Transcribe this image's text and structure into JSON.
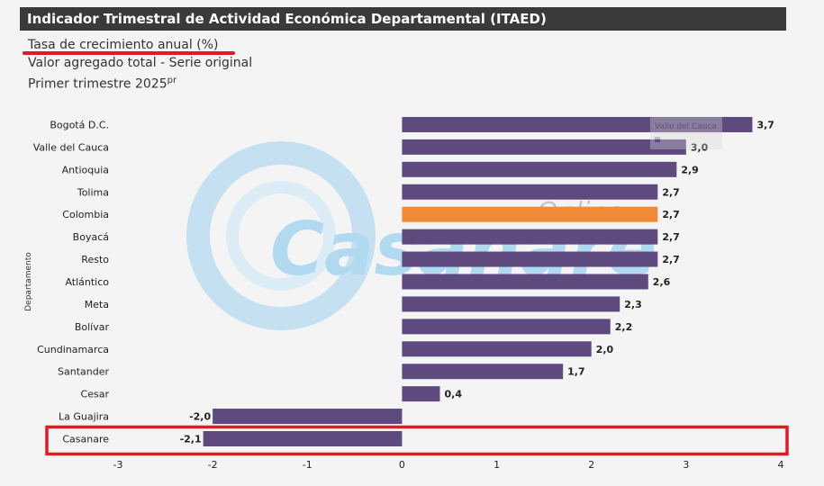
{
  "title": "Indicador Trimestral de Actividad Económica Departamental (ITAED)",
  "subtitle1": "Tasa de crecimiento anual (%)",
  "subtitle2": "Valor agregado total - Serie original",
  "subtitle3": "Primer trimestre 2025",
  "subtitle3_sup": "pr",
  "watermark": {
    "brand": "Casanare",
    "tag": "Online"
  },
  "tooltip": {
    "label": "Valle del Cauca"
  },
  "chart_data": {
    "type": "bar",
    "orientation": "horizontal",
    "ylabel": "Departamento",
    "xlim": [
      -3,
      4
    ],
    "x_ticks": [
      "-3",
      "-2",
      "-1",
      "0",
      "1",
      "2",
      "3",
      "4"
    ],
    "categories": [
      "Bogotá D.C.",
      "Valle del Cauca",
      "Antioquia",
      "Tolima",
      "Colombia",
      "Boyacá",
      "Resto",
      "Atlántico",
      "Meta",
      "Bolívar",
      "Cundinamarca",
      "Santander",
      "Cesar",
      "La Guajira",
      "Casanare"
    ],
    "values": [
      3.7,
      3.0,
      2.9,
      2.7,
      2.7,
      2.7,
      2.7,
      2.6,
      2.3,
      2.2,
      2.0,
      1.7,
      0.4,
      -2.0,
      -2.1
    ],
    "labels": [
      "3,7",
      "3,0",
      "2,9",
      "2,7",
      "2,7",
      "2,7",
      "2,7",
      "2,6",
      "2,3",
      "2,2",
      "2,0",
      "1,7",
      "0,4",
      "-2,0",
      "-2,1"
    ],
    "colors": {
      "default": "#5f4a80",
      "highlight": "#f08a34"
    },
    "highlight_category": "Colombia",
    "boxed_category": "Casanare",
    "box_color": "#e21b23",
    "grid": false
  }
}
